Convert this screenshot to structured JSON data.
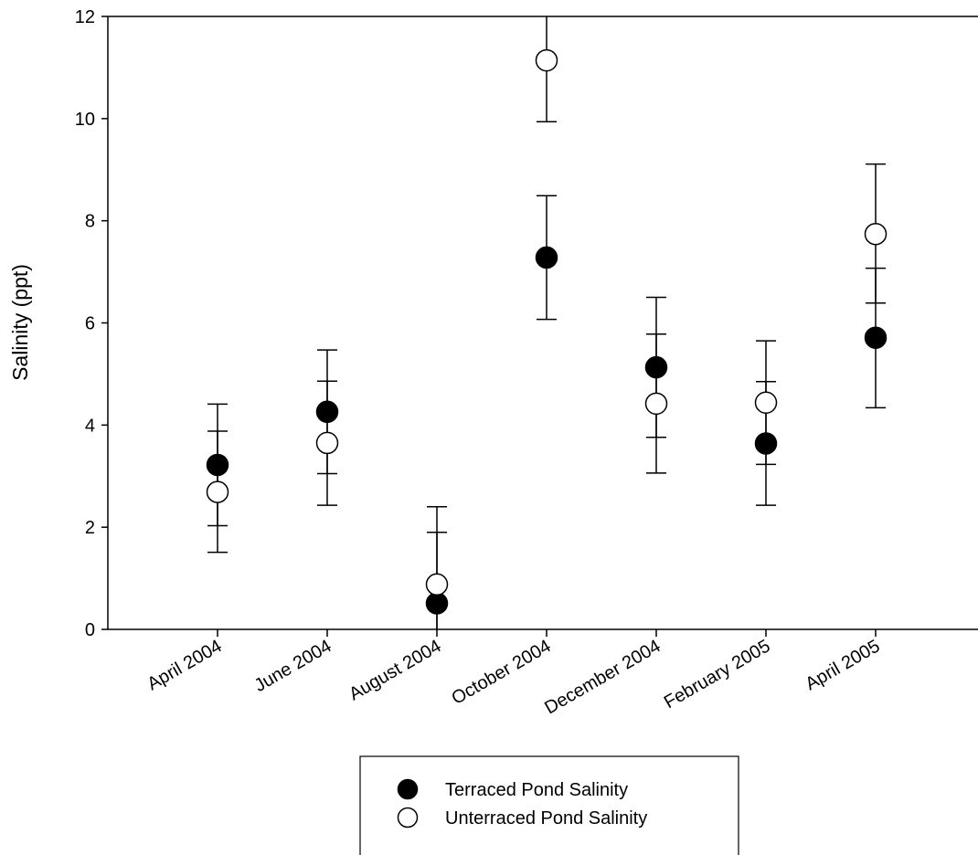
{
  "chart_data": {
    "type": "scatter",
    "title": "",
    "xlabel": "",
    "ylabel": "Salinity (ppt)",
    "ylim": [
      0,
      12
    ],
    "yticks": [
      0,
      2,
      4,
      6,
      8,
      10,
      12
    ],
    "grid": false,
    "legend_position": "bottom-center",
    "categories": [
      "April 2004",
      "June 2004",
      "August 2004",
      "October 2004",
      "December 2004",
      "February 2005",
      "April 2005"
    ],
    "series": [
      {
        "name": "Terraced Pond Salinity",
        "marker": "filled-circle",
        "color": "#000000",
        "values": [
          3.22,
          4.26,
          0.51,
          7.28,
          5.13,
          3.64,
          5.71
        ],
        "error_low": [
          2.03,
          3.05,
          0.0,
          6.07,
          3.76,
          2.43,
          4.34
        ],
        "error_high": [
          4.41,
          5.47,
          1.9,
          8.49,
          6.5,
          4.85,
          7.07
        ]
      },
      {
        "name": "Unterraced Pond Salinity",
        "marker": "open-circle",
        "color": "#ffffff",
        "values": [
          2.69,
          3.65,
          0.88,
          11.14,
          4.42,
          4.44,
          7.74
        ],
        "error_low": [
          1.51,
          2.43,
          0.0,
          9.94,
          3.06,
          3.23,
          6.39
        ],
        "error_high": [
          3.88,
          4.86,
          2.4,
          12.34,
          5.78,
          5.65,
          9.11
        ]
      }
    ]
  }
}
